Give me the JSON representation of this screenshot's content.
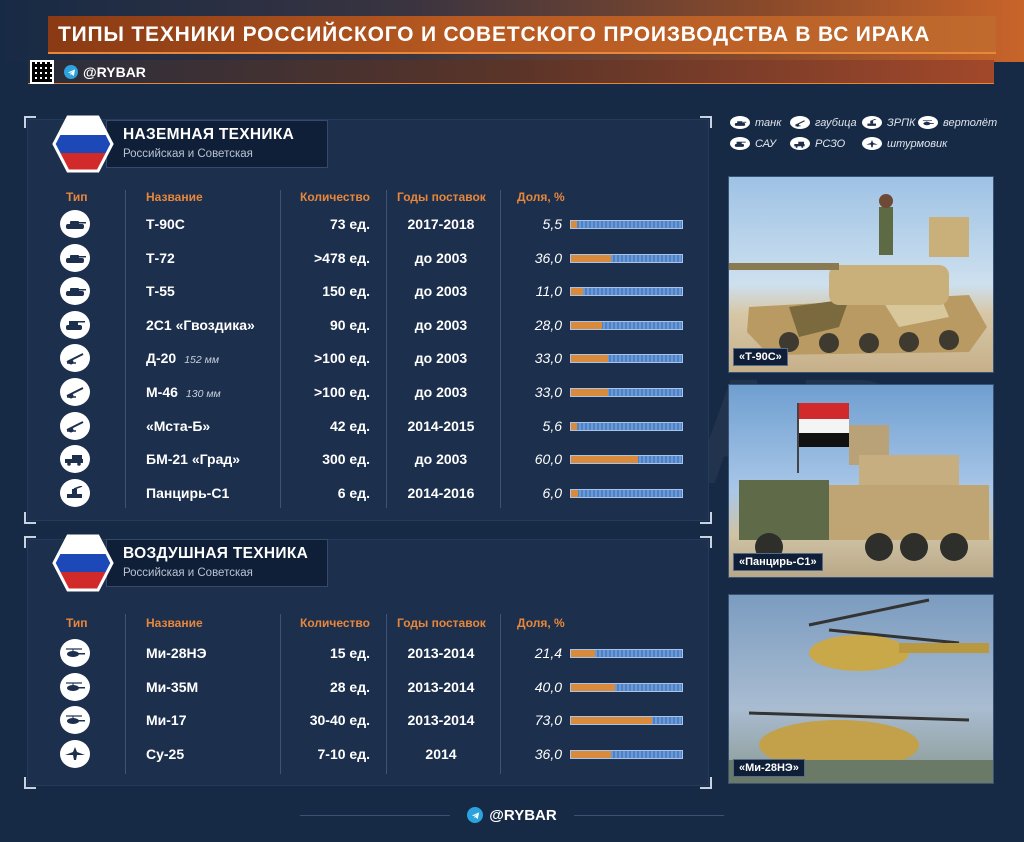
{
  "header": {
    "title": "ТИПЫ ТЕХНИКИ РОССИЙСКОГО И СОВЕТСКОГО ПРОИЗВОДСТВА В ВС ИРАКА",
    "handle": "@RYBAR"
  },
  "columns": {
    "type": "Тип",
    "name": "Название",
    "qty": "Количество",
    "years": "Годы поставок",
    "share": "Доля, %"
  },
  "ground": {
    "title": "НАЗЕМНАЯ ТЕХНИКА",
    "subtitle": "Российская и Советская",
    "rows": [
      {
        "icon": "tank-icon",
        "name": "Т-90С",
        "caliber": "",
        "qty": "73 ед.",
        "years": "2017-2018",
        "share": "5,5",
        "share_value": 5.5
      },
      {
        "icon": "tank-icon",
        "name": "Т-72",
        "caliber": "",
        "qty": ">478 ед.",
        "years": "до 2003",
        "share": "36,0",
        "share_value": 36.0
      },
      {
        "icon": "tank-icon",
        "name": "Т-55",
        "caliber": "",
        "qty": "150 ед.",
        "years": "до 2003",
        "share": "11,0",
        "share_value": 11.0
      },
      {
        "icon": "spg-icon",
        "name": "2С1 «Гвоздика»",
        "caliber": "",
        "qty": "90 ед.",
        "years": "до 2003",
        "share": "28,0",
        "share_value": 28.0
      },
      {
        "icon": "howitzer-icon",
        "name": "Д-20",
        "caliber": "152 мм",
        "qty": ">100 ед.",
        "years": "до 2003",
        "share": "33,0",
        "share_value": 33.0
      },
      {
        "icon": "howitzer-icon",
        "name": "М-46",
        "caliber": "130 мм",
        "qty": ">100 ед.",
        "years": "до 2003",
        "share": "33,0",
        "share_value": 33.0
      },
      {
        "icon": "howitzer-icon",
        "name": "«Мста-Б»",
        "caliber": "",
        "qty": "42 ед.",
        "years": "2014-2015",
        "share": "5,6",
        "share_value": 5.6
      },
      {
        "icon": "mlrs-icon",
        "name": "БМ-21 «Град»",
        "caliber": "",
        "qty": "300 ед.",
        "years": "до 2003",
        "share": "60,0",
        "share_value": 60.0
      },
      {
        "icon": "sam-icon",
        "name": "Панцирь-С1",
        "caliber": "",
        "qty": "6 ед.",
        "years": "2014-2016",
        "share": "6,0",
        "share_value": 6.0
      }
    ]
  },
  "air": {
    "title": "ВОЗДУШНАЯ ТЕХНИКА",
    "subtitle": "Российская и Советская",
    "rows": [
      {
        "icon": "helicopter-icon",
        "name": "Ми-28НЭ",
        "caliber": "",
        "qty": "15 ед.",
        "years": "2013-2014",
        "share": "21,4",
        "share_value": 21.4
      },
      {
        "icon": "helicopter-icon",
        "name": "Ми-35М",
        "caliber": "",
        "qty": "28 ед.",
        "years": "2013-2014",
        "share": "40,0",
        "share_value": 40.0
      },
      {
        "icon": "helicopter-icon",
        "name": "Ми-17",
        "caliber": "",
        "qty": "30-40 ед.",
        "years": "2013-2014",
        "share": "73,0",
        "share_value": 73.0
      },
      {
        "icon": "attack-aircraft-icon",
        "name": "Су-25",
        "caliber": "",
        "qty": "7-10 ед.",
        "years": "2014",
        "share": "36,0",
        "share_value": 36.0
      }
    ]
  },
  "legend": [
    {
      "icon": "tank-icon",
      "label": "танк"
    },
    {
      "icon": "howitzer-icon",
      "label": "гаубица"
    },
    {
      "icon": "sam-icon",
      "label": "ЗРПК"
    },
    {
      "icon": "helicopter-icon",
      "label": "вертолёт"
    },
    {
      "icon": "spg-icon",
      "label": "САУ"
    },
    {
      "icon": "mlrs-icon",
      "label": "РСЗО"
    },
    {
      "icon": "attack-aircraft-icon",
      "label": "штурмовик"
    }
  ],
  "photos": [
    {
      "caption": "«Т-90С»"
    },
    {
      "caption": "«Панцирь-С1»"
    },
    {
      "caption": "«Ми-28НЭ»"
    }
  ],
  "footer": {
    "handle": "@RYBAR"
  },
  "watermark": "@RYBAR",
  "colors": {
    "accent": "#e8873a",
    "panel": "#1c2f4d",
    "background": "#172a45",
    "bar_fill": "#d98a3a",
    "bar_empty": "#5b8cd0"
  }
}
